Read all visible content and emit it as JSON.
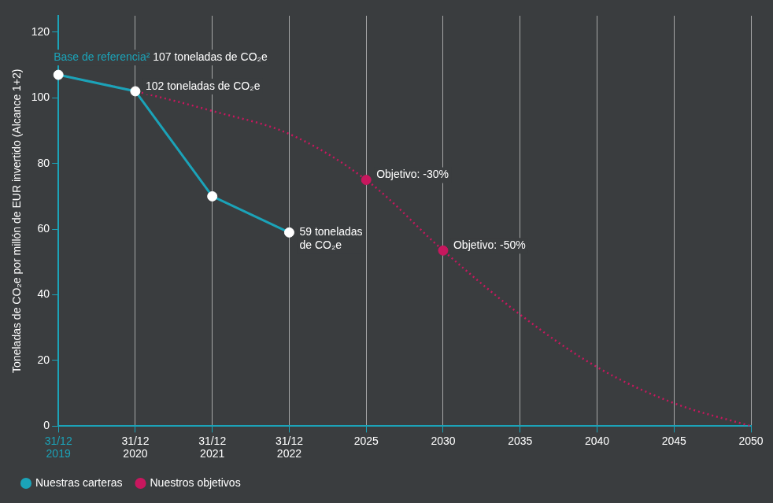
{
  "chart_data": {
    "type": "line",
    "categories": [
      "31/12 2019",
      "31/12 2020",
      "31/12 2021",
      "31/12 2022",
      "2025",
      "2030",
      "2035",
      "2040",
      "2045",
      "2050"
    ],
    "series": [
      {
        "name": "Nuestras carteras",
        "color": "#1ba3b8",
        "marker": "circle",
        "line_style": "solid",
        "values": [
          107,
          102,
          70,
          59,
          null,
          null,
          null,
          null,
          null,
          null
        ]
      },
      {
        "name": "Nuestros objetivos",
        "color": "#c8175e",
        "marker": "circle",
        "line_style": "dotted",
        "values": [
          107,
          102,
          96,
          89,
          75,
          53.5,
          34,
          18,
          7,
          0
        ]
      }
    ],
    "y_label": "Toneladas de CO₂e por millón de EUR invertido (Alcance 1+2)",
    "ylim": [
      0,
      125
    ],
    "yticks": [
      0,
      20,
      40,
      60,
      80,
      100,
      120
    ],
    "grid": "x",
    "legend": "bottom-left",
    "annotations": [
      {
        "x": "31/12 2019",
        "y": 107,
        "series": "Nuestras carteras",
        "prefix": "Base de referencia²",
        "color": "#1ba3b8",
        "text": "107 toneladas de CO₂e"
      },
      {
        "x": "31/12 2020",
        "y": 102,
        "series": "Nuestras carteras",
        "text": "102 toneladas de CO₂e"
      },
      {
        "x": "31/12 2022",
        "y": 59,
        "series": "Nuestras carteras",
        "text": [
          "59 toneladas",
          "de CO₂e"
        ]
      },
      {
        "x": "2025",
        "y": 75,
        "series": "Nuestros objetivos",
        "text": "Objetivo: -30%"
      },
      {
        "x": "2030",
        "y": 53.5,
        "series": "Nuestros objetivos",
        "text": "Objetivo: -50%"
      }
    ]
  }
}
